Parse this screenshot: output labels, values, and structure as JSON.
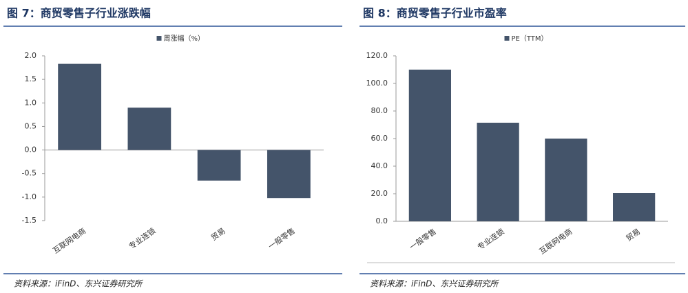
{
  "chart_data": [
    {
      "type": "bar",
      "title": "图 7：商贸零售子行业涨跌幅",
      "source": "资料来源：iFinD、东兴证券研究所",
      "categories": [
        "互联网电商",
        "专业连锁",
        "贸易",
        "一般零售"
      ],
      "series": [
        {
          "name": "周涨幅（%）",
          "color": "#44546a",
          "values": [
            1.83,
            0.9,
            -0.65,
            -1.02
          ]
        }
      ],
      "ylim": [
        -1.5,
        2.0
      ],
      "yticks": [
        {
          "value": -1.5,
          "label": "-1.5"
        },
        {
          "value": -1,
          "label": "-1.0"
        },
        {
          "value": -0.5,
          "label": "-0.5"
        },
        {
          "value": 0,
          "label": "0.0"
        },
        {
          "value": 0.5,
          "label": "0.5"
        },
        {
          "value": 1,
          "label": "1.0"
        },
        {
          "value": 1.5,
          "label": "1.5"
        },
        {
          "value": 2,
          "label": "2.0"
        }
      ],
      "grid": false
    },
    {
      "type": "bar",
      "title": "图 8：商贸零售子行业市盈率",
      "source": "资料来源：iFinD、东兴证券研究所",
      "categories": [
        "一般零售",
        "专业连锁",
        "互联网电商",
        "贸易"
      ],
      "series": [
        {
          "name": "PE（TTM）",
          "color": "#44546a",
          "values": [
            110,
            71.5,
            60,
            20.5
          ]
        }
      ],
      "ylim": [
        0,
        120
      ],
      "yticks": [
        {
          "value": 0,
          "label": "0.0"
        },
        {
          "value": 20,
          "label": "20.0"
        },
        {
          "value": 40,
          "label": "40.0"
        },
        {
          "value": 60,
          "label": "60.0"
        },
        {
          "value": 80,
          "label": "80.0"
        },
        {
          "value": 100,
          "label": "100.0"
        },
        {
          "value": 120,
          "label": "120.0"
        }
      ],
      "grid": false
    }
  ]
}
